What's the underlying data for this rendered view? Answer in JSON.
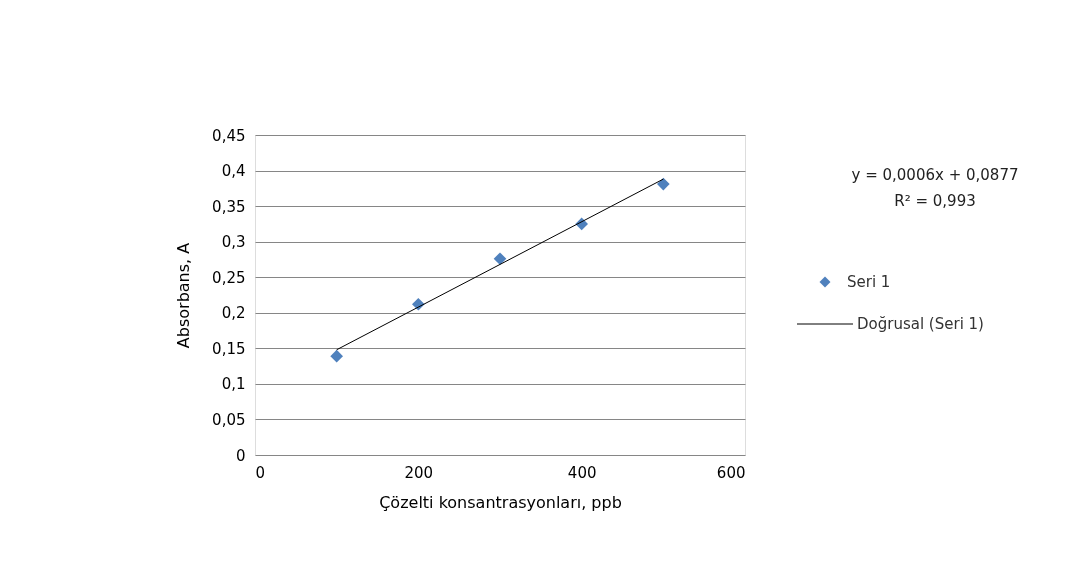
{
  "chart_data": {
    "type": "scatter",
    "xlabel": "Çözelti  konsantrasyonları, ppb",
    "ylabel": "Absorbans, A",
    "xlim": [
      0,
      600
    ],
    "xticks": [
      0,
      200,
      400,
      600
    ],
    "ylim": [
      0,
      0.45
    ],
    "yticks": [
      {
        "value": 0,
        "label": "0"
      },
      {
        "value": 0.05,
        "label": "0,05"
      },
      {
        "value": 0.1,
        "label": "0,1"
      },
      {
        "value": 0.15,
        "label": "0,15"
      },
      {
        "value": 0.2,
        "label": "0,2"
      },
      {
        "value": 0.25,
        "label": "0,25"
      },
      {
        "value": 0.3,
        "label": "0,3"
      },
      {
        "value": 0.35,
        "label": "0,35"
      },
      {
        "value": 0.4,
        "label": "0,4"
      },
      {
        "value": 0.45,
        "label": "0,45"
      }
    ],
    "grid": "y",
    "legend": "right",
    "annotations": [
      "y = 0,0006x + 0,0877",
      "R² = 0,993"
    ],
    "series": [
      {
        "name": "Seri 1",
        "marker": "diamond",
        "color": "#4f81bd",
        "x": [
          100,
          200,
          300,
          400,
          500
        ],
        "values": [
          0.139,
          0.212,
          0.276,
          0.325,
          0.381
        ]
      },
      {
        "name": "Doğrusal (Seri 1)",
        "type": "line",
        "color": "#000000",
        "x": [
          100,
          500
        ],
        "values": [
          0.148,
          0.388
        ],
        "marker": "none",
        "line_style": "solid"
      }
    ]
  }
}
